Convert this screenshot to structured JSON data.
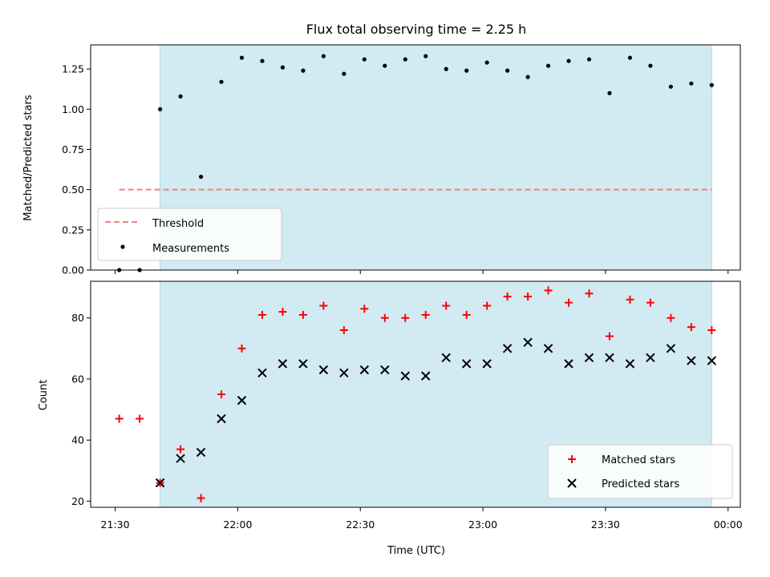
{
  "chart_data": [
    {
      "type": "scatter",
      "title": "Flux total observing time = 2.25 h",
      "xlabel": "",
      "ylabel": "Matched/Predicted stars",
      "xlim": [
        "21:24",
        "00:03"
      ],
      "ylim": [
        0,
        1.4
      ],
      "yticks": [
        "0.00",
        "0.25",
        "0.50",
        "0.75",
        "1.00",
        "1.25"
      ],
      "shaded_span": [
        "21:41",
        "23:56"
      ],
      "shaded_color": "#add8e6",
      "threshold": {
        "name": "Threshold",
        "value": 0.5,
        "x_start": "21:31",
        "x_end": "23:56",
        "color": "#f08080"
      },
      "series": [
        {
          "name": "Measurements",
          "marker": "dot",
          "color": "#000000",
          "points": [
            [
              "21:31",
              0.0
            ],
            [
              "21:36",
              0.0
            ],
            [
              "21:41",
              1.0
            ],
            [
              "21:46",
              1.08
            ],
            [
              "21:51",
              0.58
            ],
            [
              "21:56",
              1.17
            ],
            [
              "22:01",
              1.32
            ],
            [
              "22:06",
              1.3
            ],
            [
              "22:11",
              1.26
            ],
            [
              "22:16",
              1.24
            ],
            [
              "22:21",
              1.33
            ],
            [
              "22:26",
              1.22
            ],
            [
              "22:31",
              1.31
            ],
            [
              "22:36",
              1.27
            ],
            [
              "22:41",
              1.31
            ],
            [
              "22:46",
              1.33
            ],
            [
              "22:51",
              1.25
            ],
            [
              "22:56",
              1.24
            ],
            [
              "23:01",
              1.29
            ],
            [
              "23:06",
              1.24
            ],
            [
              "23:11",
              1.2
            ],
            [
              "23:16",
              1.27
            ],
            [
              "23:21",
              1.3
            ],
            [
              "23:26",
              1.31
            ],
            [
              "23:31",
              1.1
            ],
            [
              "23:36",
              1.32
            ],
            [
              "23:41",
              1.27
            ],
            [
              "23:46",
              1.14
            ],
            [
              "23:51",
              1.16
            ],
            [
              "23:56",
              1.15
            ]
          ]
        }
      ]
    },
    {
      "type": "scatter",
      "title": "",
      "xlabel": "Time (UTC)",
      "ylabel": "Count",
      "xlim": [
        "21:24",
        "00:03"
      ],
      "ylim": [
        18,
        92
      ],
      "yticks": [
        "20",
        "40",
        "60",
        "80"
      ],
      "xticks": [
        "21:30",
        "22:00",
        "22:30",
        "23:00",
        "23:30",
        "00:00"
      ],
      "shaded_span": [
        "21:41",
        "23:56"
      ],
      "shaded_color": "#add8e6",
      "series": [
        {
          "name": "Matched stars",
          "marker": "plus",
          "color": "#ff0000",
          "points": [
            [
              "21:31",
              47
            ],
            [
              "21:36",
              47
            ],
            [
              "21:41",
              26
            ],
            [
              "21:46",
              37
            ],
            [
              "21:51",
              21
            ],
            [
              "21:56",
              55
            ],
            [
              "22:01",
              70
            ],
            [
              "22:06",
              81
            ],
            [
              "22:11",
              82
            ],
            [
              "22:16",
              81
            ],
            [
              "22:21",
              84
            ],
            [
              "22:26",
              76
            ],
            [
              "22:31",
              83
            ],
            [
              "22:36",
              80
            ],
            [
              "22:41",
              80
            ],
            [
              "22:46",
              81
            ],
            [
              "22:51",
              84
            ],
            [
              "22:56",
              81
            ],
            [
              "23:01",
              84
            ],
            [
              "23:06",
              87
            ],
            [
              "23:11",
              87
            ],
            [
              "23:16",
              89
            ],
            [
              "23:21",
              85
            ],
            [
              "23:26",
              88
            ],
            [
              "23:31",
              74
            ],
            [
              "23:36",
              86
            ],
            [
              "23:41",
              85
            ],
            [
              "23:46",
              80
            ],
            [
              "23:51",
              77
            ],
            [
              "23:56",
              76
            ]
          ]
        },
        {
          "name": "Predicted stars",
          "marker": "x",
          "color": "#000000",
          "points": [
            [
              "21:41",
              26
            ],
            [
              "21:46",
              34
            ],
            [
              "21:51",
              36
            ],
            [
              "21:56",
              47
            ],
            [
              "22:01",
              53
            ],
            [
              "22:06",
              62
            ],
            [
              "22:11",
              65
            ],
            [
              "22:16",
              65
            ],
            [
              "22:21",
              63
            ],
            [
              "22:26",
              62
            ],
            [
              "22:31",
              63
            ],
            [
              "22:36",
              63
            ],
            [
              "22:41",
              61
            ],
            [
              "22:46",
              61
            ],
            [
              "22:51",
              67
            ],
            [
              "22:56",
              65
            ],
            [
              "23:01",
              65
            ],
            [
              "23:06",
              70
            ],
            [
              "23:11",
              72
            ],
            [
              "23:16",
              70
            ],
            [
              "23:21",
              65
            ],
            [
              "23:26",
              67
            ],
            [
              "23:31",
              67
            ],
            [
              "23:36",
              65
            ],
            [
              "23:41",
              67
            ],
            [
              "23:46",
              70
            ],
            [
              "23:51",
              66
            ],
            [
              "23:56",
              66
            ]
          ]
        }
      ]
    }
  ]
}
